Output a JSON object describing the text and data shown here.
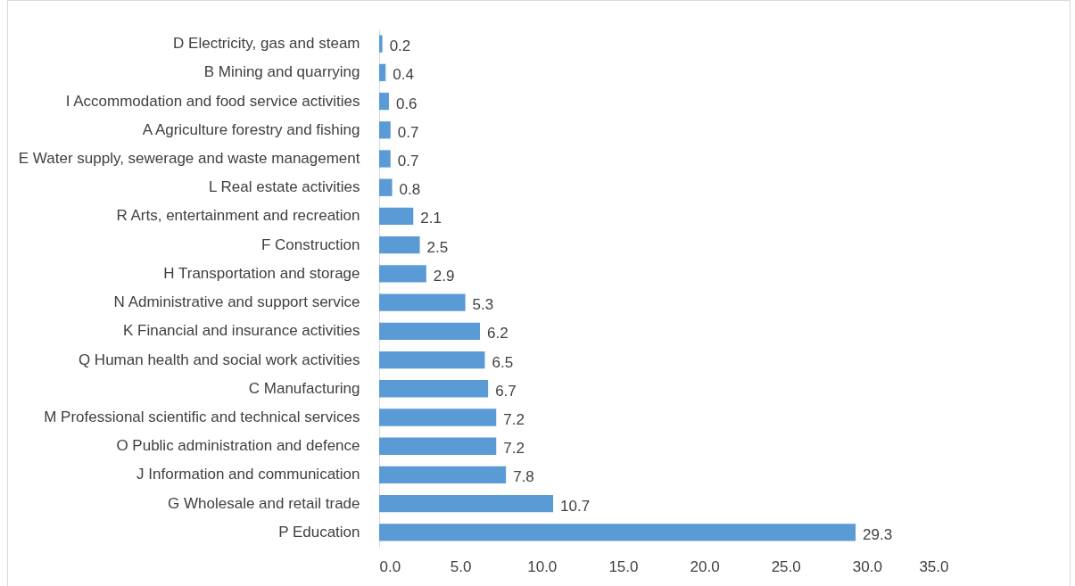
{
  "chart_data": {
    "type": "bar",
    "orientation": "horizontal",
    "categories": [
      "D Electricity, gas and steam",
      "B Mining and quarrying",
      "I Accommodation and food service activities",
      "A Agriculture forestry and fishing",
      "E Water supply, sewerage and waste management",
      "L Real estate activities",
      "R Arts, entertainment and recreation",
      "F Construction",
      "H Transportation and storage",
      "N Administrative and support service",
      "K Financial and insurance activities",
      "Q Human health and social work activities",
      "C Manufacturing",
      "M Professional scientific and technical services",
      "O Public administration and defence",
      "J Information and communication",
      "G Wholesale and retail trade",
      "P Education"
    ],
    "values": [
      0.2,
      0.4,
      0.6,
      0.7,
      0.7,
      0.8,
      2.1,
      2.5,
      2.9,
      5.3,
      6.2,
      6.5,
      6.7,
      7.2,
      7.2,
      7.8,
      10.7,
      29.3
    ],
    "color": "#5b9bd5",
    "xlim": [
      0,
      35
    ],
    "xticks": [
      {
        "value": 0,
        "label": "0.0"
      },
      {
        "value": 5,
        "label": "5.0"
      },
      {
        "value": 10,
        "label": "10.0"
      },
      {
        "value": 15,
        "label": "15.0"
      },
      {
        "value": 20,
        "label": "20.0"
      },
      {
        "value": 25,
        "label": "25.0"
      },
      {
        "value": 30,
        "label": "30.0"
      },
      {
        "value": 35,
        "label": "35.0"
      }
    ],
    "grid": false,
    "data_labels": true
  }
}
